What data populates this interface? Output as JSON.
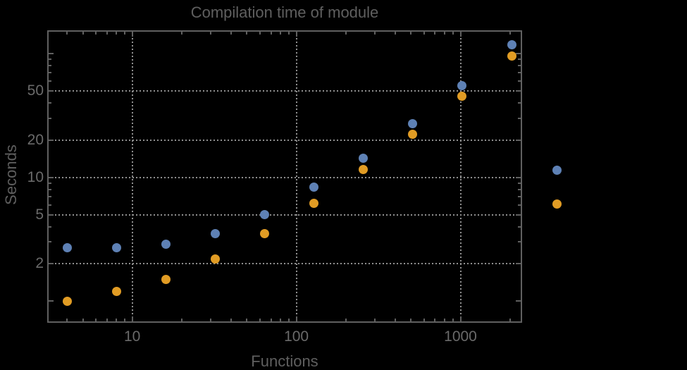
{
  "title": "Compilation time of module",
  "axes": {
    "x_label": "Functions",
    "y_label": "Seconds"
  },
  "colors": {
    "background": "#000000",
    "frame": "#606060",
    "gridlines": "#8f8f8f",
    "tick_label_text": "#6a6a6a",
    "title_text": "#5f5f5f",
    "series_blue": "#5e81b5",
    "series_orange": "#e19c24"
  },
  "chart_data": {
    "type": "scatter",
    "title": "Compilation time of module",
    "xlabel": "Functions",
    "ylabel": "Seconds",
    "x_scale": "log",
    "y_scale": "log",
    "grid": "dotted gridlines at labeled major ticks",
    "legend_position": "right-of-frame, markers only (labels not visible)",
    "x_range": [
      3.1,
      2360
    ],
    "y_range": [
      0.7,
      152
    ],
    "x": [
      4,
      8,
      16,
      32,
      64,
      128,
      256,
      512,
      1024,
      2048
    ],
    "series": [
      {
        "name": "blue",
        "color": "#5e81b5",
        "values": [
          2.7,
          2.7,
          2.9,
          3.5,
          5.0,
          8.3,
          14.3,
          27,
          55,
          118
        ]
      },
      {
        "name": "orange",
        "color": "#e19c24",
        "values": [
          1.0,
          1.2,
          1.5,
          2.2,
          3.5,
          6.2,
          11.6,
          22.4,
          45.6,
          96
        ]
      }
    ],
    "x_major_ticks": [
      10,
      100,
      1000
    ],
    "y_major_ticks": [
      2,
      5,
      10,
      20,
      50
    ],
    "y_unlabeled_major_ticks": [
      1,
      100
    ],
    "x_minor_ticks": [
      4,
      5,
      6,
      7,
      8,
      9,
      20,
      30,
      40,
      50,
      60,
      70,
      80,
      90,
      200,
      300,
      400,
      500,
      600,
      700,
      800,
      900,
      2000
    ],
    "y_minor_ticks": [
      3,
      4,
      6,
      7,
      8,
      9,
      30,
      40,
      60,
      70,
      80,
      90
    ],
    "x_gridlines": [
      10,
      100,
      1000
    ],
    "y_gridlines": [
      2,
      5,
      10,
      20,
      50
    ],
    "legend_markers": [
      {
        "series": "blue",
        "color": "#5e81b5"
      },
      {
        "series": "orange",
        "color": "#e19c24"
      }
    ]
  }
}
